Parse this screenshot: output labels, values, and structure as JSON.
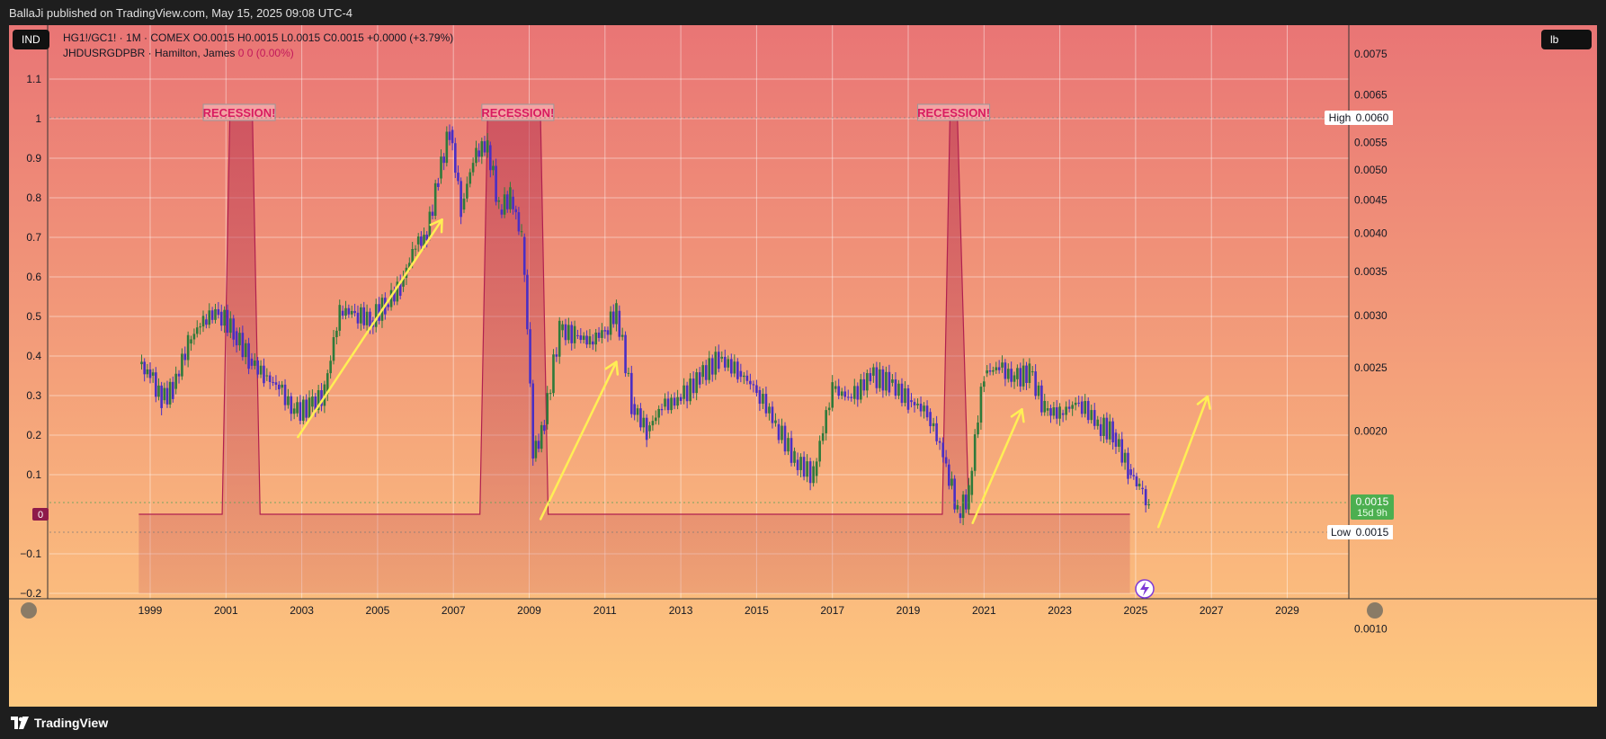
{
  "header": {
    "publish_line": "BallaJi published on TradingView.com, May 15, 2025 09:08 UTC-4"
  },
  "footer": {
    "brand": "TradingView"
  },
  "chart_meta": {
    "left_badge": "IND",
    "right_badge": "lb",
    "legend_line1": "HG1!/GC1! · 1M · COMEX  O0.0015  H0.0015  L0.0015  C0.0015  +0.0000 (+3.79%)",
    "legend_line2_name": "JHDUSRGDPBR · Hamilton, James",
    "legend_line2_values": "0  0 (0.00%)",
    "high_label": "High",
    "high_value": "0.0060",
    "low_label": "Low",
    "low_value": "0.0015",
    "last_value": "0.0015",
    "countdown": "15d 9h",
    "zero_label": "0",
    "recession_label": "RECESSION!"
  },
  "colors": {
    "bg_top": "#e97575",
    "bg_bottom": "#fec97f",
    "down_candle": "#4a2ec4",
    "up_candle": "#2f7a3a",
    "recession_line": "#b02050",
    "recession_fill": "#b8324f",
    "arrow": "#ffee55",
    "price_badge": "#4caf50"
  },
  "chart_data": {
    "type": "line",
    "title": "",
    "x_ticks": [
      "1999",
      "2001",
      "2003",
      "2005",
      "2007",
      "2009",
      "2011",
      "2013",
      "2015",
      "2017",
      "2019",
      "2021",
      "2023",
      "2025",
      "2027",
      "2029"
    ],
    "left_axis": {
      "ticks": [
        "1.1",
        "1",
        "0.9",
        "0.8",
        "0.7",
        "0.6",
        "0.5",
        "0.4",
        "0.3",
        "0.2",
        "0.1",
        "−0.1",
        "−0.2"
      ],
      "range": [
        -0.2,
        1.1
      ]
    },
    "right_axis": {
      "ticks": [
        "0.0075",
        "0.0065",
        "0.0060",
        "0.0055",
        "0.0050",
        "0.0045",
        "0.0040",
        "0.0035",
        "0.0030",
        "0.0025",
        "0.0020",
        "0.0015",
        "0.0010"
      ],
      "scale": "log"
    },
    "series": [
      {
        "name": "HG1!/GC1!",
        "axis": "right",
        "x": [
          1998.7,
          1999.0,
          1999.3,
          1999.6,
          2000.0,
          2000.4,
          2000.8,
          2001.2,
          2001.6,
          2002.0,
          2002.4,
          2002.8,
          2003.2,
          2003.6,
          2004.0,
          2004.4,
          2004.8,
          2005.2,
          2005.6,
          2006.0,
          2006.3,
          2006.6,
          2006.9,
          2007.2,
          2007.6,
          2007.9,
          2008.2,
          2008.5,
          2008.8,
          2009.1,
          2009.4,
          2009.8,
          2010.2,
          2010.6,
          2011.0,
          2011.3,
          2011.7,
          2012.1,
          2012.5,
          2013.0,
          2013.5,
          2014.0,
          2014.5,
          2015.0,
          2015.5,
          2016.0,
          2016.5,
          2017.0,
          2017.5,
          2018.0,
          2018.5,
          2019.0,
          2019.5,
          2020.0,
          2020.3,
          2020.6,
          2021.0,
          2021.4,
          2021.8,
          2022.2,
          2022.6,
          2023.0,
          2023.5,
          2024.0,
          2024.4,
          2024.8,
          2025.1,
          2025.35
        ],
        "values": [
          0.00253,
          0.00243,
          0.00223,
          0.00232,
          0.00272,
          0.00296,
          0.00304,
          0.00284,
          0.00258,
          0.00243,
          0.00233,
          0.00213,
          0.00218,
          0.00228,
          0.00305,
          0.00303,
          0.00295,
          0.00312,
          0.00332,
          0.00385,
          0.00395,
          0.00485,
          0.00575,
          0.00435,
          0.00535,
          0.00545,
          0.00435,
          0.00455,
          0.00395,
          0.00182,
          0.00205,
          0.00285,
          0.0028,
          0.00274,
          0.00285,
          0.00305,
          0.0022,
          0.002,
          0.00218,
          0.00224,
          0.00242,
          0.00258,
          0.00247,
          0.00231,
          0.00205,
          0.00181,
          0.00171,
          0.00232,
          0.00224,
          0.00243,
          0.00237,
          0.00223,
          0.00214,
          0.00178,
          0.0015,
          0.0016,
          0.00245,
          0.0025,
          0.0024,
          0.00246,
          0.00215,
          0.00213,
          0.00222,
          0.00205,
          0.00199,
          0.00175,
          0.00164,
          0.00153
        ]
      },
      {
        "name": "JHDUSRGDPBR",
        "axis": "left",
        "x": [
          1998.7,
          2000.9,
          2001.1,
          2001.7,
          2001.9,
          2007.7,
          2007.9,
          2009.3,
          2009.5,
          2019.9,
          2020.1,
          2020.3,
          2020.6,
          2024.85
        ],
        "values": [
          0,
          0,
          1,
          1,
          0,
          0,
          1,
          1,
          0,
          0,
          1,
          1,
          0,
          0
        ]
      }
    ],
    "annotations": [
      {
        "text": "RECESSION!",
        "x": 2001.35
      },
      {
        "text": "RECESSION!",
        "x": 2008.7
      },
      {
        "text": "RECESSION!",
        "x": 2020.2
      }
    ],
    "arrows": [
      {
        "from": [
          2002.9,
          0.00196
        ],
        "to": [
          2006.7,
          0.0042
        ]
      },
      {
        "from": [
          2009.3,
          0.00147
        ],
        "to": [
          2011.3,
          0.00255
        ]
      },
      {
        "from": [
          2020.7,
          0.00145
        ],
        "to": [
          2022.0,
          0.00216
        ]
      },
      {
        "from": [
          2025.6,
          0.00143
        ],
        "to": [
          2026.9,
          0.00226
        ]
      }
    ],
    "grid": true
  }
}
